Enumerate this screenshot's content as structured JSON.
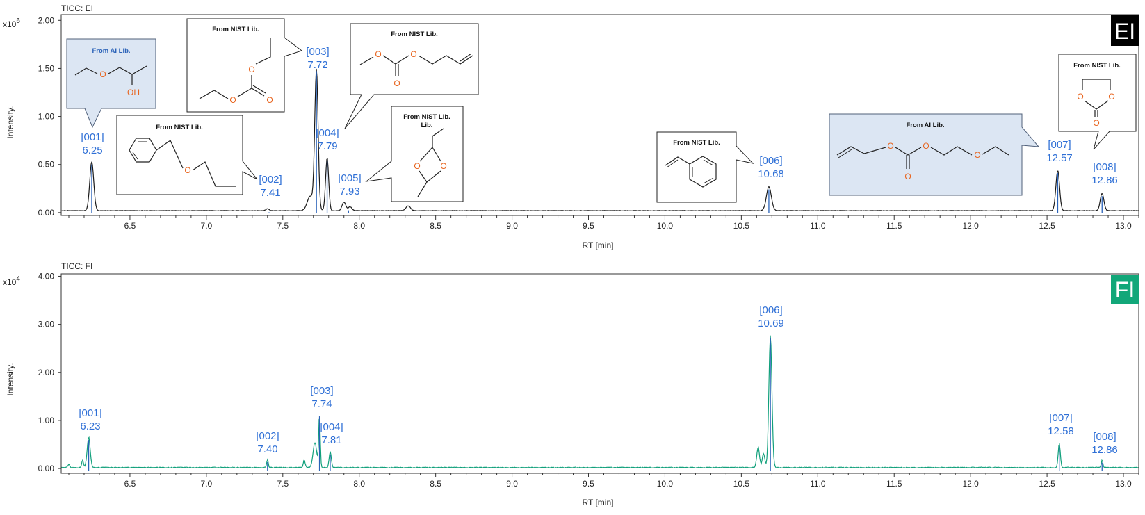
{
  "colors": {
    "ei_trace": "#1a1a1a",
    "fi_trace": "#11a07b",
    "label": "#2e6fd6",
    "marker": "#2a62b8",
    "ai_box_fill": "#dce6f3",
    "ai_box_stroke": "#50607a",
    "nist_box_fill": "#ffffff",
    "heteroatom": "#e8641e",
    "ei_badge_bg": "#000000",
    "fi_badge_bg": "#12a779"
  },
  "chart_data": [
    {
      "type": "line",
      "title": "TICC: EI",
      "badge": "EI",
      "xlabel": "RT [min]",
      "ylabel": "Intensity.",
      "y_multiplier": "x10",
      "y_exponent": "6",
      "xlim": [
        6.05,
        13.1
      ],
      "ylim": [
        -0.03,
        2.06
      ],
      "x_ticks": [
        "6.5",
        "7.0",
        "7.5",
        "8.0",
        "8.5",
        "9.0",
        "9.5",
        "10.0",
        "10.5",
        "11.0",
        "11.5",
        "12.0",
        "12.5",
        "13.0"
      ],
      "y_ticks": [
        "0.00",
        "0.50",
        "1.00",
        "1.50",
        "2.00"
      ],
      "baseline": 0.02,
      "peaks": [
        {
          "rt": 6.25,
          "height": 0.51,
          "width": 0.013
        },
        {
          "rt": 7.4,
          "height": 0.02,
          "width": 0.01
        },
        {
          "rt": 7.72,
          "height": 1.46,
          "width": 0.011
        },
        {
          "rt": 7.68,
          "height": 0.15,
          "width": 0.02
        },
        {
          "rt": 7.79,
          "height": 0.55,
          "width": 0.01
        },
        {
          "rt": 7.9,
          "height": 0.09,
          "width": 0.012
        },
        {
          "rt": 7.94,
          "height": 0.04,
          "width": 0.012
        },
        {
          "rt": 8.32,
          "height": 0.05,
          "width": 0.015
        },
        {
          "rt": 10.68,
          "height": 0.25,
          "width": 0.016
        },
        {
          "rt": 12.57,
          "height": 0.42,
          "width": 0.012
        },
        {
          "rt": 12.86,
          "height": 0.18,
          "width": 0.012
        }
      ],
      "labels": [
        {
          "id": "[001]",
          "rt_text": "6.25",
          "rt": 6.25
        },
        {
          "id": "[002]",
          "rt_text": "7.41",
          "rt": 7.41
        },
        {
          "id": "[003]",
          "rt_text": "7.72",
          "rt": 7.72
        },
        {
          "id": "[004]",
          "rt_text": "7.79",
          "rt": 7.79
        },
        {
          "id": "[005]",
          "rt_text": "7.93",
          "rt": 7.93
        },
        {
          "id": "[006]",
          "rt_text": "10.68",
          "rt": 10.68
        },
        {
          "id": "[007]",
          "rt_text": "12.57",
          "rt": 12.57
        },
        {
          "id": "[008]",
          "rt_text": "12.86",
          "rt": 12.86
        }
      ],
      "callouts": [
        {
          "peak": "[001]",
          "title": "From AI Lib.",
          "source": "ai",
          "atoms": [
            "O",
            "OH"
          ]
        },
        {
          "peak": "[002]",
          "title": "From NIST Lib.",
          "source": "nist",
          "atoms": [
            "O"
          ]
        },
        {
          "peak": "[003]",
          "title": "From NIST Lib.",
          "source": "nist",
          "atoms": [
            "O",
            "O",
            "O"
          ]
        },
        {
          "peak": "[004]",
          "title": "From NIST Lib.",
          "source": "nist",
          "atoms": [
            "O",
            "O",
            "O"
          ]
        },
        {
          "peak": "[005]",
          "title": "From NIST Lib.",
          "source": "nist",
          "atoms": [
            "O",
            "O"
          ]
        },
        {
          "peak": "[006]",
          "title": "From NIST Lib.",
          "source": "nist",
          "atoms": []
        },
        {
          "peak": "[007]",
          "title": "From AI Lib.",
          "source": "ai",
          "atoms": [
            "O",
            "O",
            "O",
            "O"
          ]
        },
        {
          "peak": "[008]",
          "title": "From NIST Lib.",
          "source": "nist",
          "atoms": [
            "O",
            "O",
            "O"
          ]
        }
      ]
    },
    {
      "type": "line",
      "title": "TICC: FI",
      "badge": "FI",
      "xlabel": "RT [min]",
      "ylabel": "Intensity.",
      "y_multiplier": "x10",
      "y_exponent": "4",
      "xlim": [
        6.05,
        13.1
      ],
      "ylim": [
        -0.1,
        4.05
      ],
      "x_ticks": [
        "6.5",
        "7.0",
        "7.5",
        "8.0",
        "8.5",
        "9.0",
        "9.5",
        "10.0",
        "10.5",
        "11.0",
        "11.5",
        "12.0",
        "12.5",
        "13.0"
      ],
      "y_ticks": [
        "0.00",
        "1.00",
        "2.00",
        "3.00",
        "4.00"
      ],
      "baseline": 0.02,
      "peaks": [
        {
          "rt": 6.1,
          "height": 0.07,
          "width": 0.006
        },
        {
          "rt": 6.19,
          "height": 0.15,
          "width": 0.006
        },
        {
          "rt": 6.23,
          "height": 0.63,
          "width": 0.01
        },
        {
          "rt": 7.4,
          "height": 0.17,
          "width": 0.005
        },
        {
          "rt": 7.64,
          "height": 0.16,
          "width": 0.006
        },
        {
          "rt": 7.71,
          "height": 0.52,
          "width": 0.012
        },
        {
          "rt": 7.74,
          "height": 1.1,
          "width": 0.005
        },
        {
          "rt": 7.81,
          "height": 0.33,
          "width": 0.007
        },
        {
          "rt": 10.61,
          "height": 0.42,
          "width": 0.009
        },
        {
          "rt": 10.645,
          "height": 0.3,
          "width": 0.008
        },
        {
          "rt": 10.69,
          "height": 2.75,
          "width": 0.01
        },
        {
          "rt": 12.58,
          "height": 0.5,
          "width": 0.007
        },
        {
          "rt": 12.86,
          "height": 0.16,
          "width": 0.005
        }
      ],
      "labels": [
        {
          "id": "[001]",
          "rt_text": "6.23",
          "rt": 6.23
        },
        {
          "id": "[002]",
          "rt_text": "7.40",
          "rt": 7.4
        },
        {
          "id": "[003]",
          "rt_text": "7.74",
          "rt": 7.74
        },
        {
          "id": "[004]",
          "rt_text": "7.81",
          "rt": 7.81
        },
        {
          "id": "[006]",
          "rt_text": "10.69",
          "rt": 10.69
        },
        {
          "id": "[007]",
          "rt_text": "12.58",
          "rt": 12.58
        },
        {
          "id": "[008]",
          "rt_text": "12.86",
          "rt": 12.86
        }
      ]
    }
  ]
}
